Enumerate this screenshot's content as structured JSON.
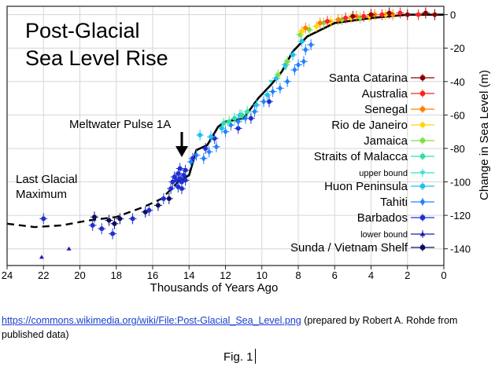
{
  "chart_data": {
    "type": "scatter",
    "title": "Post-Glacial Sea Level Rise",
    "title_lines": [
      "Post-Glacial",
      "Sea Level Rise"
    ],
    "xlabel": "Thousands of Years Ago",
    "ylabel": "Change in Sea Level (m)",
    "xlim": [
      24,
      0
    ],
    "ylim": [
      -150,
      5
    ],
    "x_ticks": [
      24,
      22,
      20,
      18,
      16,
      14,
      12,
      10,
      8,
      6,
      4,
      2,
      0
    ],
    "y_ticks": [
      0,
      -20,
      -40,
      -60,
      -80,
      -100,
      -120,
      -140
    ],
    "grid": true,
    "legend_position": "right",
    "annotations": [
      {
        "text": "Meltwater Pulse 1A",
        "x": 14.6,
        "y": -88
      },
      {
        "text_lines": [
          "Last Glacial",
          "Maximum"
        ],
        "x": 21,
        "y": -120
      }
    ],
    "legend": [
      {
        "label": "Santa Catarina",
        "color": "#8b0000",
        "marker": "circle"
      },
      {
        "label": "Australia",
        "color": "#ff2020",
        "marker": "circle"
      },
      {
        "label": "Senegal",
        "color": "#ff7f00",
        "marker": "circle"
      },
      {
        "label": "Rio de Janeiro",
        "color": "#ffd700",
        "marker": "circle"
      },
      {
        "label": "Jamaica",
        "color": "#7fe040",
        "marker": "circle"
      },
      {
        "label": "Straits of Malacca",
        "color": "#30e0a0",
        "marker": "circle"
      },
      {
        "label": "upper bound",
        "color": "#30e0d0",
        "marker": "triangle-down",
        "small": true
      },
      {
        "label": "Huon Peninsula",
        "color": "#20c0f0",
        "marker": "circle"
      },
      {
        "label": "Tahiti",
        "color": "#2080ff",
        "marker": "diamond"
      },
      {
        "label": "Barbados",
        "color": "#2030d0",
        "marker": "circle"
      },
      {
        "label": "lower bound",
        "color": "#1a1ab0",
        "marker": "triangle-up",
        "small": true
      },
      {
        "label": "Sunda / Vietnam Shelf",
        "color": "#0a0a60",
        "marker": "circle"
      }
    ],
    "trend_solid": [
      [
        14.6,
        -100
      ],
      [
        14,
        -96
      ],
      [
        13.6,
        -81
      ],
      [
        13,
        -78
      ],
      [
        12.4,
        -67
      ],
      [
        12,
        -64
      ],
      [
        11,
        -62
      ],
      [
        10.2,
        -50
      ],
      [
        9.5,
        -42
      ],
      [
        8.9,
        -34
      ],
      [
        8.3,
        -22
      ],
      [
        7.5,
        -13
      ],
      [
        6,
        -5
      ],
      [
        4,
        -2
      ],
      [
        2,
        0
      ],
      [
        0,
        0
      ]
    ],
    "trend_dashed": [
      [
        24,
        -125
      ],
      [
        22.5,
        -127
      ],
      [
        21,
        -126
      ],
      [
        19.5,
        -123
      ],
      [
        18,
        -121
      ],
      [
        16.5,
        -115
      ],
      [
        15.5,
        -110
      ],
      [
        14.6,
        -100
      ]
    ],
    "series": [
      {
        "name": "Sunda / Vietnam Shelf",
        "color": "#0a0a60",
        "points": [
          [
            19.2,
            -121
          ],
          [
            18.4,
            -123
          ],
          [
            18.1,
            -125
          ],
          [
            17.8,
            -122
          ],
          [
            16.4,
            -118
          ],
          [
            15.7,
            -114
          ],
          [
            15.1,
            -110
          ]
        ]
      },
      {
        "name": "Barbados",
        "color": "#2030d0",
        "points": [
          [
            22,
            -122
          ],
          [
            19.3,
            -126
          ],
          [
            18.8,
            -128
          ],
          [
            18.2,
            -131
          ],
          [
            17.1,
            -122
          ],
          [
            16.2,
            -117
          ],
          [
            15.4,
            -110
          ],
          [
            15.0,
            -104
          ],
          [
            14.9,
            -100
          ],
          [
            14.8,
            -97
          ],
          [
            14.7,
            -99
          ],
          [
            14.6,
            -103
          ],
          [
            14.6,
            -95
          ],
          [
            14.5,
            -98
          ],
          [
            14.5,
            -92
          ],
          [
            14.4,
            -100
          ],
          [
            14.4,
            -104
          ],
          [
            14.3,
            -96
          ],
          [
            14.2,
            -99
          ],
          [
            14.2,
            -93
          ],
          [
            13.8,
            -86
          ],
          [
            13.1,
            -80
          ],
          [
            12.6,
            -74
          ],
          [
            11.3,
            -68
          ],
          [
            10.6,
            -62
          ],
          [
            9.6,
            -52
          ]
        ]
      },
      {
        "name": "Tahiti",
        "color": "#2080ff",
        "points": [
          [
            13.9,
            -88
          ],
          [
            13.6,
            -84
          ],
          [
            13.2,
            -86
          ],
          [
            12.9,
            -82
          ],
          [
            12.5,
            -79
          ],
          [
            12.0,
            -70
          ],
          [
            11.7,
            -66
          ],
          [
            11.3,
            -64
          ],
          [
            10.9,
            -62
          ],
          [
            10.4,
            -58
          ],
          [
            9.9,
            -52
          ],
          [
            9.4,
            -46
          ],
          [
            9.0,
            -44
          ],
          [
            8.6,
            -40
          ],
          [
            8.2,
            -33
          ],
          [
            7.6,
            -21
          ],
          [
            7.3,
            -18
          ],
          [
            7.7,
            -28
          ],
          [
            8.0,
            -30
          ]
        ]
      },
      {
        "name": "Huon Peninsula",
        "color": "#20c0f0",
        "points": [
          [
            13.4,
            -72
          ],
          [
            12.8,
            -73
          ],
          [
            12.2,
            -68
          ],
          [
            11.2,
            -60
          ],
          [
            10.3,
            -54
          ],
          [
            9.7,
            -48
          ],
          [
            9.2,
            -38
          ],
          [
            8.7,
            -30
          ],
          [
            8.3,
            -24
          ],
          [
            7.8,
            -16
          ]
        ]
      },
      {
        "name": "Straits of Malacca",
        "color": "#30e0a0",
        "points": [
          [
            12.1,
            -65
          ],
          [
            11.8,
            -64
          ],
          [
            11.5,
            -62
          ],
          [
            11.1,
            -60
          ],
          [
            10.8,
            -58
          ]
        ]
      },
      {
        "name": "Jamaica",
        "color": "#7fe040",
        "points": [
          [
            9.1,
            -36
          ],
          [
            8.6,
            -28
          ],
          [
            7.9,
            -12
          ],
          [
            7.4,
            -9
          ],
          [
            6.6,
            -5
          ],
          [
            5.6,
            -3
          ],
          [
            4.6,
            -2
          ]
        ]
      },
      {
        "name": "Rio de Janeiro",
        "color": "#ffd700",
        "points": [
          [
            7.8,
            -10
          ],
          [
            7.0,
            -7
          ],
          [
            6.2,
            -4
          ],
          [
            5.1,
            -2
          ],
          [
            4.1,
            -1
          ],
          [
            3.2,
            0
          ]
        ]
      },
      {
        "name": "Senegal",
        "color": "#ff7f00",
        "points": [
          [
            7.6,
            -8
          ],
          [
            6.8,
            -5
          ],
          [
            5.8,
            -3
          ],
          [
            4.8,
            -1
          ],
          [
            3.8,
            0
          ],
          [
            2.8,
            0
          ]
        ]
      },
      {
        "name": "Australia",
        "color": "#ff2020",
        "points": [
          [
            6.4,
            -4
          ],
          [
            5.4,
            -2
          ],
          [
            4.4,
            -1
          ],
          [
            3.4,
            0
          ],
          [
            2.4,
            1
          ],
          [
            1.4,
            0
          ]
        ]
      },
      {
        "name": "Santa Catarina",
        "color": "#8b0000",
        "points": [
          [
            5.0,
            -1
          ],
          [
            4.0,
            0
          ],
          [
            3.0,
            1
          ],
          [
            2.0,
            0
          ],
          [
            1.0,
            1
          ],
          [
            0.5,
            0
          ]
        ]
      }
    ],
    "lower_bound_points": [
      [
        22.1,
        -145
      ],
      [
        20.6,
        -140
      ]
    ],
    "upper_bound_points": [
      [
        9.5,
        -40
      ],
      [
        8.7,
        -32
      ]
    ]
  },
  "caption": {
    "link": "https://commons.wikimedia.org/wiki/File:Post-Glacial_Sea_Level.png",
    "note": " (prepared by Robert A. Rohde from published data)"
  },
  "figure_label": "Fig. 1"
}
